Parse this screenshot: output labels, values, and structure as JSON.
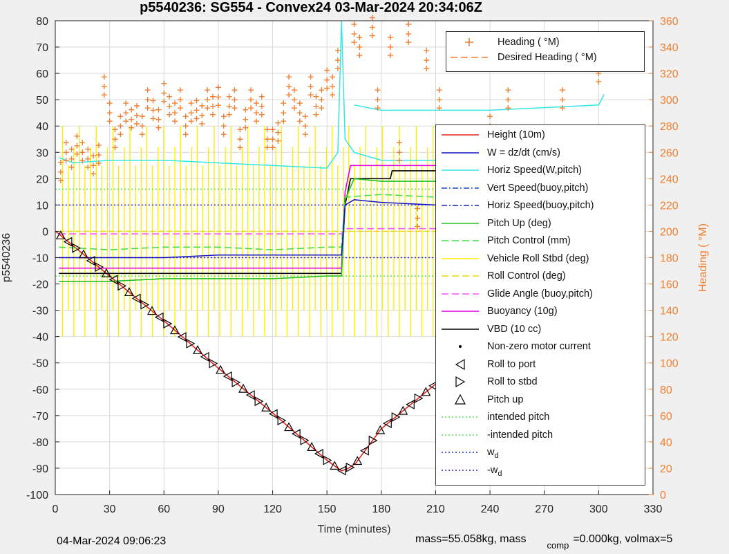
{
  "title": "p5540236: SG554 - Convex24 03-Mar-2024 20:34:06Z",
  "footer": {
    "date": "04-Mar-2024 09:06:23",
    "mass_part1": "mass=55.058kg, mass",
    "mass_sub": "comp",
    "mass_part2": "=0.000kg, volmax=5"
  },
  "colors": {
    "height": "#e0201b",
    "w": "#1010c8",
    "horiz_w": "#33e6e6",
    "vert_buoy": "#1a3fe0",
    "horiz_buoy": "#1f1fb0",
    "pitch": "#22c022",
    "pitch_control": "#44dd44",
    "roll": "#ffee00",
    "roll_control": "#e8d800",
    "glide": "#ff50ff",
    "buoyancy": "#e000e0",
    "vbd": "#000000",
    "heading": "#f07f30",
    "intended_pitch": "#4ee04e",
    "wd": "#2a2ad0"
  },
  "chart_data": {
    "type": "line",
    "title": "p5540236: SG554 - Convex24 03-Mar-2024 20:34:06Z",
    "xlabel": "Time (minutes)",
    "ylabel": "p5540236",
    "y2label": "Heading ( °M)",
    "xlim": [
      0,
      330
    ],
    "ylim": [
      -100,
      80
    ],
    "y2lim": [
      0,
      360
    ],
    "xticks": [
      "0",
      "30",
      "60",
      "90",
      "120",
      "150",
      "180",
      "210",
      "240",
      "270",
      "300",
      "330"
    ],
    "yticks": [
      "80",
      "70",
      "60",
      "50",
      "40",
      "30",
      "20",
      "10",
      "0",
      "-10",
      "-20",
      "-30",
      "-40",
      "-50",
      "-60",
      "-70",
      "-80",
      "-90",
      "-100"
    ],
    "y2ticks": [
      "360",
      "340",
      "320",
      "300",
      "280",
      "260",
      "240",
      "220",
      "200",
      "180",
      "160",
      "140",
      "120",
      "100",
      "80",
      "60",
      "40",
      "20",
      "0"
    ],
    "grid": true,
    "legend_heading": [
      {
        "name": "Heading ( °M)",
        "style": "plus"
      },
      {
        "name": "Desired Heading ( °M)",
        "style": "dashed"
      }
    ],
    "legend_main": [
      {
        "name": "Height (10m)",
        "style": "line",
        "key": "height"
      },
      {
        "name": "W = dz/dt (cm/s)",
        "style": "line",
        "key": "w"
      },
      {
        "name": "Horiz Speed(W,pitch)",
        "style": "line",
        "key": "horiz_w"
      },
      {
        "name": "Vert Speed(buoy,pitch)",
        "style": "dashdot",
        "key": "vert_buoy"
      },
      {
        "name": "Horiz Speed(buoy,pitch)",
        "style": "dashdot",
        "key": "horiz_buoy"
      },
      {
        "name": "Pitch Up (deg)",
        "style": "line",
        "key": "pitch"
      },
      {
        "name": "Pitch Control (mm)",
        "style": "dashed",
        "key": "pitch_control"
      },
      {
        "name": "Vehicle Roll Stbd (deg)",
        "style": "line",
        "key": "roll"
      },
      {
        "name": "Roll Control (deg)",
        "style": "dashed",
        "key": "roll_control"
      },
      {
        "name": "Glide Angle (buoy,pitch)",
        "style": "dashed",
        "key": "glide"
      },
      {
        "name": "Buoyancy (10g)",
        "style": "line",
        "key": "buoyancy"
      },
      {
        "name": "VBD (10 cc)",
        "style": "line",
        "key": "vbd"
      },
      {
        "name": "Non-zero motor current",
        "style": "dot",
        "key": "vbd"
      },
      {
        "name": "Roll to port",
        "style": "tri-left",
        "key": "vbd"
      },
      {
        "name": "Roll to stbd",
        "style": "tri-right",
        "key": "vbd"
      },
      {
        "name": "Pitch up",
        "style": "tri-up",
        "key": "vbd"
      },
      {
        "name": "intended pitch",
        "style": "dotted",
        "key": "intended_pitch"
      },
      {
        "name": "-intended pitch",
        "style": "dotted",
        "key": "intended_pitch"
      },
      {
        "name": "w",
        "sub": "d",
        "style": "dotted",
        "key": "wd"
      },
      {
        "name": "-w",
        "sub": "d",
        "style": "dotted",
        "key": "wd"
      }
    ],
    "series": [
      {
        "key": "height",
        "x": [
          0,
          2,
          30,
          60,
          90,
          120,
          150,
          158,
          162,
          166,
          180,
          210,
          240,
          270,
          300,
          303
        ],
        "y": [
          0,
          -1,
          -17,
          -34,
          -52,
          -69,
          -87,
          -91,
          -90,
          -88,
          -75,
          -58,
          -40,
          -22,
          -4,
          -1
        ]
      },
      {
        "key": "vbd",
        "x": [
          2,
          158,
          160,
          163,
          185,
          186,
          210,
          211,
          260,
          261,
          290,
          291,
          303
        ],
        "y": [
          -16,
          -16,
          10,
          20,
          20,
          23,
          23,
          25,
          25,
          27,
          27,
          29,
          29
        ]
      },
      {
        "key": "buoyancy",
        "x": [
          2,
          158,
          160,
          163,
          210,
          211,
          260,
          261,
          290,
          291,
          300,
          301,
          303
        ],
        "y": [
          -14,
          -14,
          15,
          25,
          25,
          27,
          27,
          29,
          29,
          31,
          31,
          36,
          36
        ]
      },
      {
        "key": "glide",
        "x": [
          2,
          158,
          160,
          303
        ],
        "y": [
          -1,
          -1,
          1,
          1
        ]
      },
      {
        "key": "horiz_w",
        "x": [
          2,
          10,
          30,
          60,
          90,
          120,
          150,
          156,
          158,
          160,
          165,
          180,
          210,
          240,
          270,
          300,
          303
        ],
        "y": [
          28,
          26,
          27,
          27,
          26,
          25,
          24,
          30,
          80,
          35,
          30,
          27,
          27,
          25,
          26,
          26,
          27
        ]
      },
      {
        "key": "horiz_w",
        "x": [
          165,
          180,
          210,
          240,
          270,
          300,
          303
        ],
        "y": [
          48,
          46,
          46,
          46,
          47,
          48,
          52
        ]
      },
      {
        "key": "pitch",
        "x": [
          2,
          30,
          60,
          90,
          120,
          150,
          158,
          160,
          165,
          180,
          210,
          240,
          270,
          300,
          303
        ],
        "y": [
          -19,
          -19,
          -18,
          -18,
          -18,
          -17,
          -17,
          12,
          20,
          19,
          19,
          18,
          17,
          18,
          19
        ]
      },
      {
        "key": "pitch_control",
        "x": [
          2,
          30,
          60,
          90,
          120,
          150,
          158,
          160,
          180,
          210,
          240,
          270,
          300,
          303
        ],
        "y": [
          -6,
          -7,
          -6,
          -6,
          -7,
          -6,
          -6,
          13,
          14,
          13,
          13,
          14,
          13,
          14
        ]
      },
      {
        "key": "w",
        "x": [
          2,
          30,
          60,
          90,
          120,
          150,
          158,
          160,
          165,
          180,
          210,
          240,
          270,
          300,
          303
        ],
        "y": [
          -10,
          -10,
          -10,
          -9,
          -9,
          -9,
          -9,
          10,
          12,
          11,
          10,
          10,
          11,
          11,
          11
        ]
      },
      {
        "key": "heading_points",
        "x": [
          3,
          6,
          9,
          12,
          15,
          18,
          21,
          24,
          27,
          30,
          33,
          36,
          39,
          42,
          45,
          48,
          51,
          54,
          57,
          60,
          63,
          66,
          69,
          72,
          75,
          78,
          81,
          84,
          87,
          90,
          93,
          96,
          99,
          102,
          105,
          108,
          111,
          114,
          117,
          120,
          123,
          126,
          129,
          132,
          135,
          138,
          141,
          144,
          147,
          150,
          153,
          156,
          165,
          168,
          175,
          178,
          185,
          190,
          195,
          200,
          205,
          212,
          220,
          230,
          240,
          250,
          260,
          270,
          280,
          290,
          300
        ],
        "y": [
          245,
          260,
          255,
          265,
          260,
          255,
          250,
          258,
          310,
          290,
          270,
          280,
          290,
          285,
          288,
          280,
          300,
          292,
          285,
          305,
          295,
          290,
          300,
          280,
          290,
          292,
          288,
          300,
          295,
          302,
          280,
          295,
          300,
          270,
          285,
          300,
          290,
          295,
          270,
          270,
          275,
          290,
          310,
          300,
          290,
          280,
          310,
          295,
          300,
          315,
          310,
          330,
          350,
          340,
          355,
          300,
          340,
          260,
          350,
          210,
          330,
          300,
          120,
          340,
          280,
          300,
          130,
          330,
          300,
          260,
          320
        ]
      }
    ]
  }
}
